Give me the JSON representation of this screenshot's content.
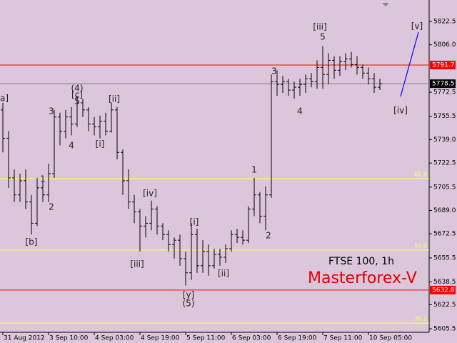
{
  "chart_data": {
    "type": "ohlc",
    "categories": [
      "31 Aug 2012",
      null,
      null,
      null,
      null,
      null,
      null,
      null,
      "3 Sep 10:00",
      null,
      null,
      null,
      null,
      null,
      null,
      null,
      "4 Sep 03:00",
      null,
      null,
      null,
      null,
      null,
      null,
      null,
      "4 Sep 19:00",
      null,
      null,
      null,
      null,
      null,
      null,
      null,
      "5 Sep 11:00",
      null,
      null,
      null,
      null,
      null,
      null,
      null,
      "6 Sep 03:00",
      null,
      null,
      null,
      null,
      null,
      null,
      null,
      "6 Sep 19:00",
      null,
      null,
      null,
      null,
      null,
      null,
      null,
      "7 Sep 11:00",
      null,
      null,
      null,
      null,
      null,
      null,
      null,
      "10 Sep 05:00",
      null,
      null
    ],
    "open": [
      5760,
      5740,
      5712,
      5700,
      5710,
      5695,
      5680,
      5705,
      5700,
      5715,
      5755,
      5745,
      5755,
      5750,
      5765,
      5760,
      5750,
      5748,
      5752,
      5745,
      5760,
      5730,
      5710,
      5695,
      5688,
      5678,
      5680,
      5690,
      5678,
      5672,
      5665,
      5668,
      5655,
      5645,
      5672,
      5650,
      5660,
      5650,
      5658,
      5656,
      5662,
      5672,
      5670,
      5668,
      5690,
      5700,
      5685,
      5700,
      5780,
      5778,
      5780,
      5774,
      5776,
      5778,
      5782,
      5780,
      5790,
      5785,
      5795,
      5788,
      5794,
      5796,
      5792,
      5790,
      5786,
      5782,
      5776
    ],
    "high": [
      5765,
      5745,
      5718,
      5715,
      5718,
      5700,
      5712,
      5710,
      5722,
      5760,
      5758,
      5760,
      5762,
      5770,
      5768,
      5762,
      5755,
      5756,
      5758,
      5765,
      5762,
      5732,
      5718,
      5700,
      5690,
      5685,
      5696,
      5692,
      5680,
      5675,
      5670,
      5672,
      5660,
      5680,
      5676,
      5668,
      5665,
      5662,
      5662,
      5665,
      5675,
      5676,
      5675,
      5692,
      5712,
      5702,
      5706,
      5785,
      5788,
      5784,
      5782,
      5780,
      5782,
      5785,
      5786,
      5795,
      5805,
      5800,
      5798,
      5798,
      5800,
      5801,
      5798,
      5792,
      5790,
      5786,
      5782
    ],
    "low": [
      5730,
      5705,
      5695,
      5695,
      5690,
      5672,
      5678,
      5695,
      5695,
      5712,
      5735,
      5740,
      5742,
      5748,
      5755,
      5745,
      5742,
      5740,
      5742,
      5744,
      5725,
      5700,
      5690,
      5680,
      5660,
      5670,
      5675,
      5672,
      5668,
      5660,
      5655,
      5650,
      5636,
      5640,
      5645,
      5645,
      5643,
      5648,
      5650,
      5652,
      5660,
      5666,
      5665,
      5666,
      5685,
      5680,
      5675,
      5698,
      5770,
      5772,
      5770,
      5768,
      5770,
      5772,
      5776,
      5775,
      5775,
      5778,
      5782,
      5784,
      5788,
      5790,
      5785,
      5782,
      5778,
      5772,
      5774
    ],
    "close": [
      5740,
      5712,
      5700,
      5710,
      5695,
      5680,
      5705,
      5700,
      5715,
      5755,
      5745,
      5755,
      5750,
      5765,
      5760,
      5750,
      5748,
      5752,
      5745,
      5760,
      5730,
      5710,
      5695,
      5688,
      5678,
      5680,
      5690,
      5678,
      5672,
      5665,
      5668,
      5655,
      5645,
      5672,
      5650,
      5660,
      5650,
      5658,
      5656,
      5662,
      5672,
      5670,
      5668,
      5690,
      5700,
      5685,
      5700,
      5780,
      5778,
      5780,
      5774,
      5776,
      5778,
      5782,
      5780,
      5790,
      5785,
      5795,
      5788,
      5794,
      5796,
      5792,
      5790,
      5786,
      5782,
      5776,
      5778.5
    ],
    "color": "#000000",
    "background": "#dcc6dc",
    "ylim": [
      5603,
      5837.6
    ],
    "yticks": [
      5822.5,
      {
        "value": 5806,
        "label": "5806.0"
      },
      5772.5,
      5755.5,
      {
        "value": 5739,
        "label": "5739.0"
      },
      5722.5,
      5705.5,
      {
        "value": 5689,
        "label": "5689.0"
      },
      5672.5,
      5655.5,
      5638.5,
      5622.5,
      5605.5
    ],
    "levels": [
      {
        "value": 5791.7,
        "label": "5791.7",
        "color": "#ff0000",
        "style": "box"
      },
      {
        "value": 5778.5,
        "label": "5778.5",
        "color": "#000000",
        "style": "box"
      },
      {
        "value": 5632.8,
        "label": "5632.8",
        "color": "#ff0000",
        "style": "box"
      },
      {
        "value": 5711.5,
        "label": "61.8",
        "color": "#ffff66",
        "style": "fib"
      },
      {
        "value": 5661,
        "label": "50.0",
        "color": "#ffff66",
        "style": "fib"
      },
      {
        "value": 5609.5,
        "label": "38.2",
        "color": "#ffff66",
        "style": "fib"
      }
    ],
    "annotations": [
      "a]",
      "3",
      "(4)",
      "[c]",
      "5",
      "[ii]",
      "4",
      "[i]",
      "1",
      "2",
      "[b]",
      "[iv]",
      "[iii]",
      "[i]",
      "[ii]",
      "[y]",
      "(5)",
      "1",
      "2",
      "3",
      "4",
      "[iii]",
      "5",
      "[iv]",
      "[v]"
    ],
    "instrument": "FTSE 100, 1h",
    "brand": "Masterforex-V"
  }
}
